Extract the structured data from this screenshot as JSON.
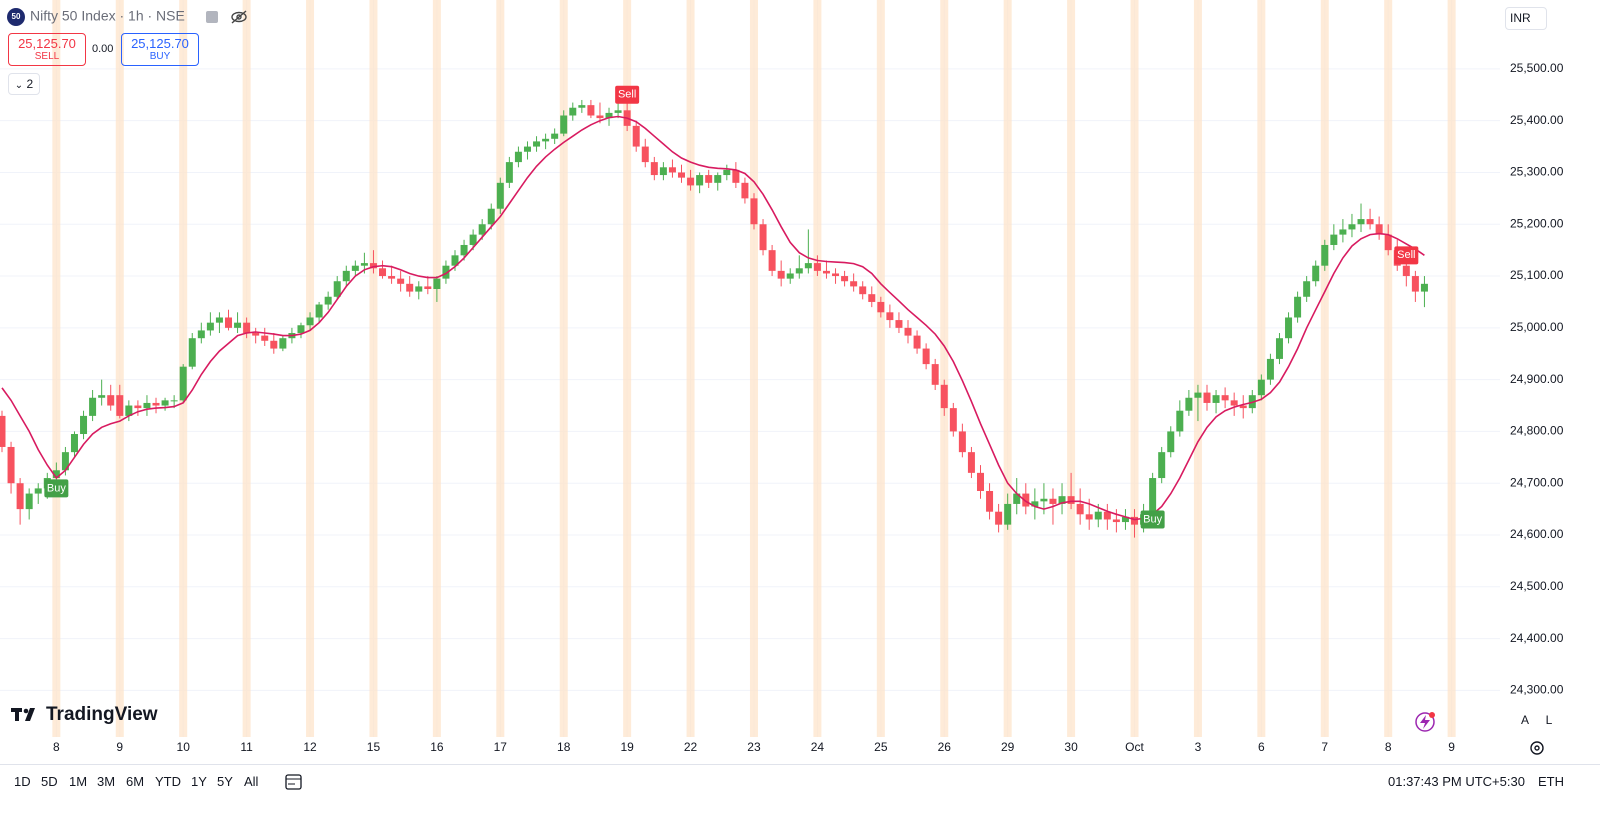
{
  "ui": {
    "symbol_badge": "50",
    "symbol": "Nifty 50 Index · 1h · NSE",
    "sell_price": "25,125.70",
    "sell_label": "SELL",
    "spread": "0.00",
    "buy_price": "25,125.70",
    "buy_label": "BUY",
    "indicator_count": "2",
    "currency": "INR",
    "brand": "TradingView",
    "scale_auto": "A",
    "scale_log": "L",
    "ranges": [
      "1D",
      "5D",
      "1M",
      "3M",
      "6M",
      "YTD",
      "1Y",
      "5Y",
      "All"
    ],
    "clock": "01:37:43 PM UTC+5:30",
    "session": "ETH"
  },
  "chart_data": {
    "type": "candlestick",
    "up_color": "#4caf50",
    "down_color": "#f7525f",
    "session_color": "#fde3c8",
    "grid": true,
    "xlim": [
      -0.22,
      165.34
    ],
    "ylim": [
      24210,
      25633
    ],
    "yticks": [
      {
        "value": 24300,
        "label": "24,300.00"
      },
      {
        "value": 24400,
        "label": "24,400.00"
      },
      {
        "value": 24500,
        "label": "24,500.00"
      },
      {
        "value": 24600,
        "label": "24,600.00"
      },
      {
        "value": 24700,
        "label": "24,700.00"
      },
      {
        "value": 24800,
        "label": "24,800.00"
      },
      {
        "value": 24900,
        "label": "24,900.00"
      },
      {
        "value": 25000,
        "label": "25,000.00"
      },
      {
        "value": 25100,
        "label": "25,100.00"
      },
      {
        "value": 25200,
        "label": "25,200.00"
      },
      {
        "value": 25300,
        "label": "25,300.00"
      },
      {
        "value": 25400,
        "label": "25,400.00"
      },
      {
        "value": 25500,
        "label": "25,500.00"
      }
    ],
    "xticks": [
      {
        "value": 6,
        "label": "8"
      },
      {
        "value": 13,
        "label": "9"
      },
      {
        "value": 20,
        "label": "10"
      },
      {
        "value": 27,
        "label": "11"
      },
      {
        "value": 34,
        "label": "12"
      },
      {
        "value": 41,
        "label": "15"
      },
      {
        "value": 48,
        "label": "16"
      },
      {
        "value": 55,
        "label": "17"
      },
      {
        "value": 62,
        "label": "18"
      },
      {
        "value": 69,
        "label": "19"
      },
      {
        "value": 76,
        "label": "22"
      },
      {
        "value": 83,
        "label": "23"
      },
      {
        "value": 90,
        "label": "24"
      },
      {
        "value": 97,
        "label": "25"
      },
      {
        "value": 104,
        "label": "26"
      },
      {
        "value": 111,
        "label": "29"
      },
      {
        "value": 118,
        "label": "30"
      },
      {
        "value": 125,
        "label": "Oct"
      },
      {
        "value": 132,
        "label": "3"
      },
      {
        "value": 139,
        "label": "6"
      },
      {
        "value": 146,
        "label": "7"
      },
      {
        "value": 153,
        "label": "8"
      },
      {
        "value": 160,
        "label": "9"
      }
    ],
    "ohlc": [
      [
        24830,
        24840,
        24760,
        24770
      ],
      [
        24770,
        24780,
        24680,
        24700
      ],
      [
        24700,
        24710,
        24620,
        24650
      ],
      [
        24650,
        24690,
        24630,
        24680
      ],
      [
        24680,
        24700,
        24660,
        24690
      ],
      [
        24690,
        24720,
        24670,
        24710
      ],
      [
        24710,
        24740,
        24690,
        24725
      ],
      [
        24725,
        24770,
        24715,
        24760
      ],
      [
        24760,
        24800,
        24750,
        24795
      ],
      [
        24795,
        24840,
        24785,
        24830
      ],
      [
        24830,
        24880,
        24820,
        24865
      ],
      [
        24865,
        24900,
        24850,
        24870
      ],
      [
        24870,
        24890,
        24840,
        24850
      ],
      [
        24870,
        24890,
        24825,
        24830
      ],
      [
        24830,
        24860,
        24820,
        24850
      ],
      [
        24850,
        24860,
        24830,
        24845
      ],
      [
        24845,
        24870,
        24830,
        24855
      ],
      [
        24855,
        24865,
        24835,
        24850
      ],
      [
        24850,
        24865,
        24840,
        24860
      ],
      [
        24860,
        24870,
        24845,
        24860
      ],
      [
        24860,
        24930,
        24855,
        24925
      ],
      [
        24925,
        24990,
        24920,
        24980
      ],
      [
        24980,
        25010,
        24970,
        24995
      ],
      [
        24995,
        25030,
        24985,
        25010
      ],
      [
        25010,
        25030,
        24990,
        25020
      ],
      [
        25020,
        25035,
        24995,
        25000
      ],
      [
        25000,
        25030,
        24990,
        25010
      ],
      [
        25010,
        25020,
        24980,
        24990
      ],
      [
        24990,
        25000,
        24970,
        24985
      ],
      [
        24985,
        25000,
        24965,
        24975
      ],
      [
        24975,
        24990,
        24950,
        24960
      ],
      [
        24960,
        24985,
        24955,
        24980
      ],
      [
        24980,
        25000,
        24970,
        24990
      ],
      [
        24990,
        25010,
        24980,
        25005
      ],
      [
        25005,
        25030,
        24995,
        25020
      ],
      [
        25020,
        25050,
        25010,
        25045
      ],
      [
        25045,
        25070,
        25035,
        25060
      ],
      [
        25060,
        25100,
        25055,
        25090
      ],
      [
        25090,
        25120,
        25080,
        25110
      ],
      [
        25110,
        25130,
        25100,
        25120
      ],
      [
        25120,
        25145,
        25105,
        25125
      ],
      [
        25125,
        25150,
        25105,
        25115
      ],
      [
        25115,
        25130,
        25095,
        25100
      ],
      [
        25100,
        25120,
        25085,
        25095
      ],
      [
        25095,
        25110,
        25070,
        25085
      ],
      [
        25085,
        25100,
        25060,
        25070
      ],
      [
        25070,
        25090,
        25055,
        25080
      ],
      [
        25080,
        25100,
        25065,
        25075
      ],
      [
        25075,
        25100,
        25050,
        25095
      ],
      [
        25095,
        25130,
        25085,
        25120
      ],
      [
        25120,
        25150,
        25110,
        25140
      ],
      [
        25140,
        25170,
        25130,
        25160
      ],
      [
        25160,
        25190,
        25150,
        25180
      ],
      [
        25180,
        25210,
        25170,
        25200
      ],
      [
        25200,
        25240,
        25190,
        25230
      ],
      [
        25230,
        25290,
        25220,
        25280
      ],
      [
        25280,
        25330,
        25270,
        25320
      ],
      [
        25320,
        25350,
        25310,
        25340
      ],
      [
        25340,
        25360,
        25325,
        25350
      ],
      [
        25350,
        25370,
        25340,
        25360
      ],
      [
        25360,
        25375,
        25345,
        25365
      ],
      [
        25365,
        25385,
        25355,
        25375
      ],
      [
        25375,
        25420,
        25370,
        25410
      ],
      [
        25410,
        25435,
        25400,
        25425
      ],
      [
        25425,
        25440,
        25415,
        25430
      ],
      [
        25430,
        25440,
        25405,
        25410
      ],
      [
        25410,
        25435,
        25395,
        25405
      ],
      [
        25405,
        25425,
        25390,
        25415
      ],
      [
        25415,
        25440,
        25405,
        25420
      ],
      [
        25420,
        25450,
        25380,
        25390
      ],
      [
        25390,
        25400,
        25340,
        25350
      ],
      [
        25350,
        25365,
        25310,
        25320
      ],
      [
        25320,
        25330,
        25285,
        25295
      ],
      [
        25295,
        25320,
        25285,
        25310
      ],
      [
        25310,
        25325,
        25290,
        25300
      ],
      [
        25300,
        25315,
        25280,
        25290
      ],
      [
        25290,
        25305,
        25265,
        25275
      ],
      [
        25275,
        25300,
        25260,
        25295
      ],
      [
        25295,
        25305,
        25270,
        25280
      ],
      [
        25280,
        25300,
        25265,
        25295
      ],
      [
        25295,
        25315,
        25285,
        25305
      ],
      [
        25305,
        25320,
        25270,
        25280
      ],
      [
        25280,
        25290,
        25240,
        25250
      ],
      [
        25250,
        25260,
        25190,
        25200
      ],
      [
        25200,
        25210,
        25140,
        25150
      ],
      [
        25150,
        25160,
        25100,
        25110
      ],
      [
        25110,
        25130,
        25080,
        25095
      ],
      [
        25095,
        25115,
        25085,
        25105
      ],
      [
        25105,
        25140,
        25095,
        25115
      ],
      [
        25115,
        25190,
        25105,
        25125
      ],
      [
        25125,
        25140,
        25100,
        25110
      ],
      [
        25110,
        25130,
        25095,
        25105
      ],
      [
        25105,
        25115,
        25085,
        25100
      ],
      [
        25100,
        25110,
        25080,
        25090
      ],
      [
        25090,
        25105,
        25070,
        25080
      ],
      [
        25080,
        25090,
        25055,
        25065
      ],
      [
        25065,
        25080,
        25040,
        25050
      ],
      [
        25050,
        25060,
        25020,
        25030
      ],
      [
        25030,
        25045,
        25000,
        25015
      ],
      [
        25015,
        25030,
        24990,
        25000
      ],
      [
        25000,
        25015,
        24970,
        24985
      ],
      [
        24985,
        24995,
        24950,
        24960
      ],
      [
        24960,
        24970,
        24920,
        24930
      ],
      [
        24930,
        24940,
        24880,
        24890
      ],
      [
        24890,
        24900,
        24830,
        24845
      ],
      [
        24845,
        24855,
        24790,
        24800
      ],
      [
        24800,
        24815,
        24750,
        24760
      ],
      [
        24760,
        24770,
        24710,
        24720
      ],
      [
        24720,
        24735,
        24670,
        24685
      ],
      [
        24685,
        24700,
        24630,
        24645
      ],
      [
        24645,
        24660,
        24605,
        24620
      ],
      [
        24620,
        24680,
        24610,
        24660
      ],
      [
        24660,
        24710,
        24640,
        24680
      ],
      [
        24680,
        24700,
        24640,
        24655
      ],
      [
        24655,
        24690,
        24630,
        24665
      ],
      [
        24665,
        24700,
        24640,
        24670
      ],
      [
        24670,
        24690,
        24620,
        24660
      ],
      [
        24660,
        24700,
        24640,
        24675
      ],
      [
        24675,
        24720,
        24650,
        24660
      ],
      [
        24660,
        24690,
        24620,
        24640
      ],
      [
        24640,
        24670,
        24610,
        24630
      ],
      [
        24630,
        24660,
        24615,
        24645
      ],
      [
        24645,
        24660,
        24610,
        24630
      ],
      [
        24630,
        24650,
        24605,
        24625
      ],
      [
        24625,
        24650,
        24610,
        24635
      ],
      [
        24635,
        24650,
        24595,
        24620
      ],
      [
        24620,
        24660,
        24605,
        24640
      ],
      [
        24640,
        24720,
        24630,
        24710
      ],
      [
        24710,
        24770,
        24700,
        24760
      ],
      [
        24760,
        24810,
        24750,
        24800
      ],
      [
        24800,
        24860,
        24790,
        24840
      ],
      [
        24840,
        24880,
        24830,
        24865
      ],
      [
        24865,
        24890,
        24820,
        24875
      ],
      [
        24875,
        24890,
        24840,
        24855
      ],
      [
        24855,
        24880,
        24835,
        24870
      ],
      [
        24870,
        24885,
        24845,
        24860
      ],
      [
        24860,
        24875,
        24830,
        24850
      ],
      [
        24850,
        24870,
        24825,
        24845
      ],
      [
        24845,
        24880,
        24835,
        24870
      ],
      [
        24870,
        24910,
        24860,
        24900
      ],
      [
        24900,
        24950,
        24890,
        24940
      ],
      [
        24940,
        24990,
        24930,
        24980
      ],
      [
        24980,
        25030,
        24970,
        25020
      ],
      [
        25020,
        25070,
        25010,
        25060
      ],
      [
        25060,
        25100,
        25050,
        25090
      ],
      [
        25090,
        25130,
        25080,
        25120
      ],
      [
        25120,
        25170,
        25110,
        25160
      ],
      [
        25160,
        25200,
        25150,
        25180
      ],
      [
        25180,
        25210,
        25165,
        25190
      ],
      [
        25190,
        25220,
        25175,
        25200
      ],
      [
        25200,
        25240,
        25185,
        25210
      ],
      [
        25210,
        25230,
        25190,
        25200
      ],
      [
        25200,
        25215,
        25170,
        25180
      ],
      [
        25180,
        25200,
        25140,
        25150
      ],
      [
        25150,
        25170,
        25110,
        25120
      ],
      [
        25120,
        25140,
        25080,
        25100
      ],
      [
        25100,
        25110,
        25050,
        25070
      ],
      [
        25070,
        25100,
        25040,
        25085
      ]
    ],
    "ma": {
      "color": "#d81b60",
      "values": [
        24884,
        24860,
        24830,
        24800,
        24765,
        24735,
        24710,
        24725,
        24750,
        24775,
        24795,
        24808,
        24815,
        24820,
        24830,
        24838,
        24843,
        24845,
        24846,
        24848,
        24855,
        24880,
        24910,
        24935,
        24955,
        24970,
        24985,
        24990,
        24992,
        24990,
        24988,
        24985,
        24985,
        24988,
        24995,
        25010,
        25030,
        25055,
        25080,
        25100,
        25112,
        25118,
        25120,
        25118,
        25112,
        25105,
        25100,
        25097,
        25097,
        25105,
        25118,
        25135,
        25155,
        25175,
        25195,
        25215,
        25240,
        25265,
        25290,
        25312,
        25330,
        25345,
        25358,
        25370,
        25382,
        25392,
        25400,
        25406,
        25408,
        25405,
        25398,
        25385,
        25370,
        25355,
        25340,
        25328,
        25320,
        25314,
        25310,
        25308,
        25307,
        25305,
        25298,
        25282,
        25258,
        25228,
        25195,
        25165,
        25145,
        25135,
        25130,
        25128,
        25127,
        25126,
        25124,
        25118,
        25105,
        25085,
        25068,
        25052,
        25035,
        25020,
        25005,
        24988,
        24965,
        24935,
        24898,
        24858,
        24815,
        24775,
        24735,
        24700,
        24680,
        24665,
        24655,
        24650,
        24655,
        24662,
        24665,
        24665,
        24660,
        24653,
        24646,
        24640,
        24635,
        24630,
        24632,
        24640,
        24655,
        24680,
        24710,
        24745,
        24780,
        24808,
        24828,
        24840,
        24847,
        24852,
        24856,
        24862,
        24875,
        24895,
        24925,
        24960,
        25000,
        25035,
        25070,
        25105,
        25135,
        25158,
        25172,
        25180,
        25182,
        25180,
        25172,
        25162,
        25152,
        25140
      ]
    },
    "signals": [
      {
        "label": "Buy",
        "index": 6,
        "side": "buy"
      },
      {
        "label": "Sell",
        "index": 69,
        "side": "sell"
      },
      {
        "label": "Buy",
        "index": 127,
        "side": "buy"
      },
      {
        "label": "Sell",
        "index": 155,
        "side": "sell"
      }
    ]
  }
}
